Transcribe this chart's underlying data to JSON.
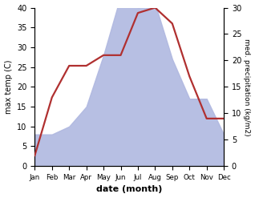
{
  "months": [
    "Jan",
    "Feb",
    "Mar",
    "Apr",
    "May",
    "Jun",
    "Jul",
    "Aug",
    "Sep",
    "Oct",
    "Nov",
    "Dec"
  ],
  "precip_left_scaled": [
    8,
    8,
    10,
    15,
    28,
    43,
    40,
    41,
    27,
    17,
    17,
    8
  ],
  "temp_right_scaled": [
    2,
    13,
    19,
    19,
    21,
    21,
    29,
    30,
    27,
    17,
    9,
    9
  ],
  "temp_color": "#b03030",
  "precip_fill_color": "#b0b8e0",
  "left_label": "max temp (C)",
  "right_label": "med. precipitation (kg/m2)",
  "xlabel": "date (month)",
  "ylim_left": [
    0,
    40
  ],
  "ylim_right": [
    0,
    30
  ],
  "figure_size": [
    3.18,
    2.47
  ],
  "dpi": 100
}
